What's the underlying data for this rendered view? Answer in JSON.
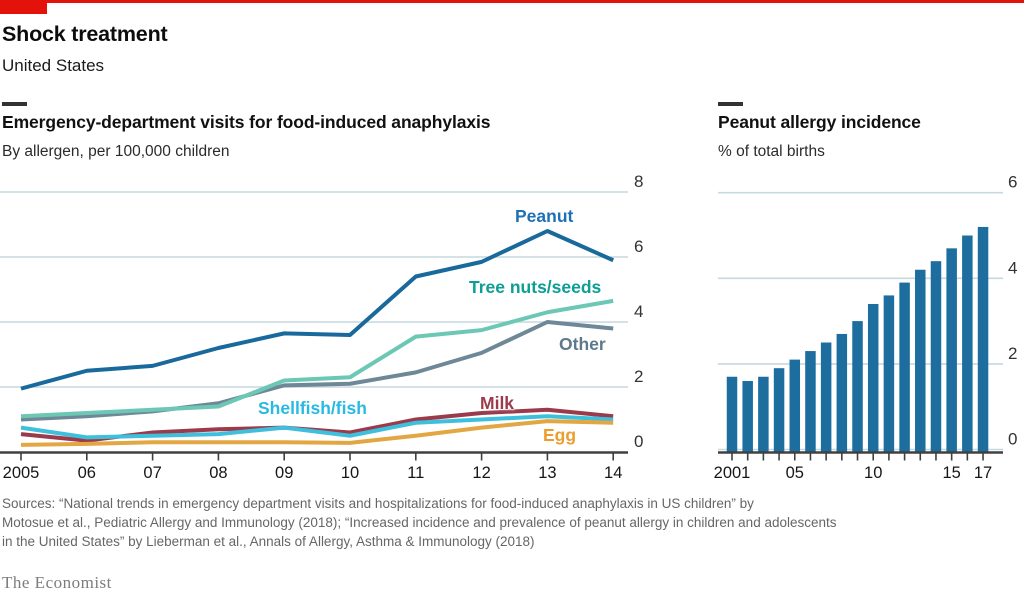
{
  "accent_red": "#e3120b",
  "header": {
    "title": "Shock treatment",
    "subtitle": "United States"
  },
  "chart_data": [
    {
      "type": "line",
      "title": "Emergency-department visits for food-induced anaphylaxis",
      "subtitle": "By allergen, per 100,000 children",
      "categories": [
        "2005",
        "06",
        "07",
        "08",
        "09",
        "10",
        "11",
        "12",
        "13",
        "14"
      ],
      "ylim": [
        0,
        8
      ],
      "yticks": [
        8,
        6,
        4,
        2,
        0
      ],
      "grid": true,
      "legend_position": "inline-labels",
      "gridline_color": "#c6d8e0",
      "series": [
        {
          "name": "Peanut",
          "color": "#1a699c",
          "label_color": "#1f70b4",
          "values": [
            1.95,
            2.5,
            2.65,
            3.2,
            3.65,
            3.6,
            5.4,
            5.85,
            6.8,
            5.9
          ]
        },
        {
          "name": "Tree nuts/seeds",
          "color": "#6dc7b5",
          "label_color": "#0d9e94",
          "values": [
            1.1,
            1.2,
            1.3,
            1.4,
            2.2,
            2.3,
            3.55,
            3.75,
            4.3,
            4.65
          ]
        },
        {
          "name": "Other",
          "color": "#6e8898",
          "label_color": "#5d7a8c",
          "values": [
            1.0,
            1.1,
            1.25,
            1.5,
            2.05,
            2.1,
            2.45,
            3.05,
            4.0,
            3.8
          ]
        },
        {
          "name": "Milk",
          "color": "#9a3a4a",
          "label_color": "#9a3a4a",
          "values": [
            0.55,
            0.35,
            0.6,
            0.7,
            0.75,
            0.6,
            1.0,
            1.2,
            1.3,
            1.1
          ]
        },
        {
          "name": "Shellfish/fish",
          "color": "#3ec0dd",
          "label_color": "#29bae2",
          "values": [
            0.75,
            0.45,
            0.5,
            0.55,
            0.75,
            0.5,
            0.9,
            1.0,
            1.1,
            1.0
          ]
        },
        {
          "name": "Egg",
          "color": "#e2a642",
          "label_color": "#eb9d2e",
          "values": [
            0.22,
            0.25,
            0.3,
            0.3,
            0.3,
            0.28,
            0.5,
            0.75,
            0.95,
            0.9
          ]
        }
      ]
    },
    {
      "type": "bar",
      "title": "Peanut allergy incidence",
      "subtitle": "% of total births",
      "categories": [
        "2001",
        "2002",
        "2003",
        "2004",
        "2005",
        "2006",
        "2007",
        "2008",
        "2009",
        "2010",
        "2011",
        "2012",
        "2013",
        "2014",
        "2015",
        "2016",
        "2017"
      ],
      "values": [
        1.7,
        1.6,
        1.7,
        1.9,
        2.1,
        2.3,
        2.5,
        2.7,
        3.0,
        3.4,
        3.6,
        3.9,
        4.2,
        4.4,
        4.7,
        5.0,
        5.2
      ],
      "bar_color": "#1d6e9f",
      "ylim": [
        0,
        6
      ],
      "yticks": [
        6,
        4,
        2,
        0
      ],
      "grid": true,
      "x_tick_labels": [
        {
          "i": 0,
          "label": "2001"
        },
        {
          "i": 4,
          "label": "05"
        },
        {
          "i": 9,
          "label": "10"
        },
        {
          "i": 14,
          "label": "15"
        },
        {
          "i": 16,
          "label": "17"
        }
      ]
    }
  ],
  "sources": {
    "lines": [
      "Sources: “National trends in emergency department visits and hospitalizations for food-induced anaphylaxis in US children” by",
      "Motosue et al., Pediatric Allergy and Immunology (2018); “Increased incidence and prevalence of peanut allergy in children and adolescents",
      "in the United States” by Lieberman et al., Annals of Allergy, Asthma & Immunology (2018)"
    ]
  },
  "footer": {
    "brand": "The Economist"
  }
}
